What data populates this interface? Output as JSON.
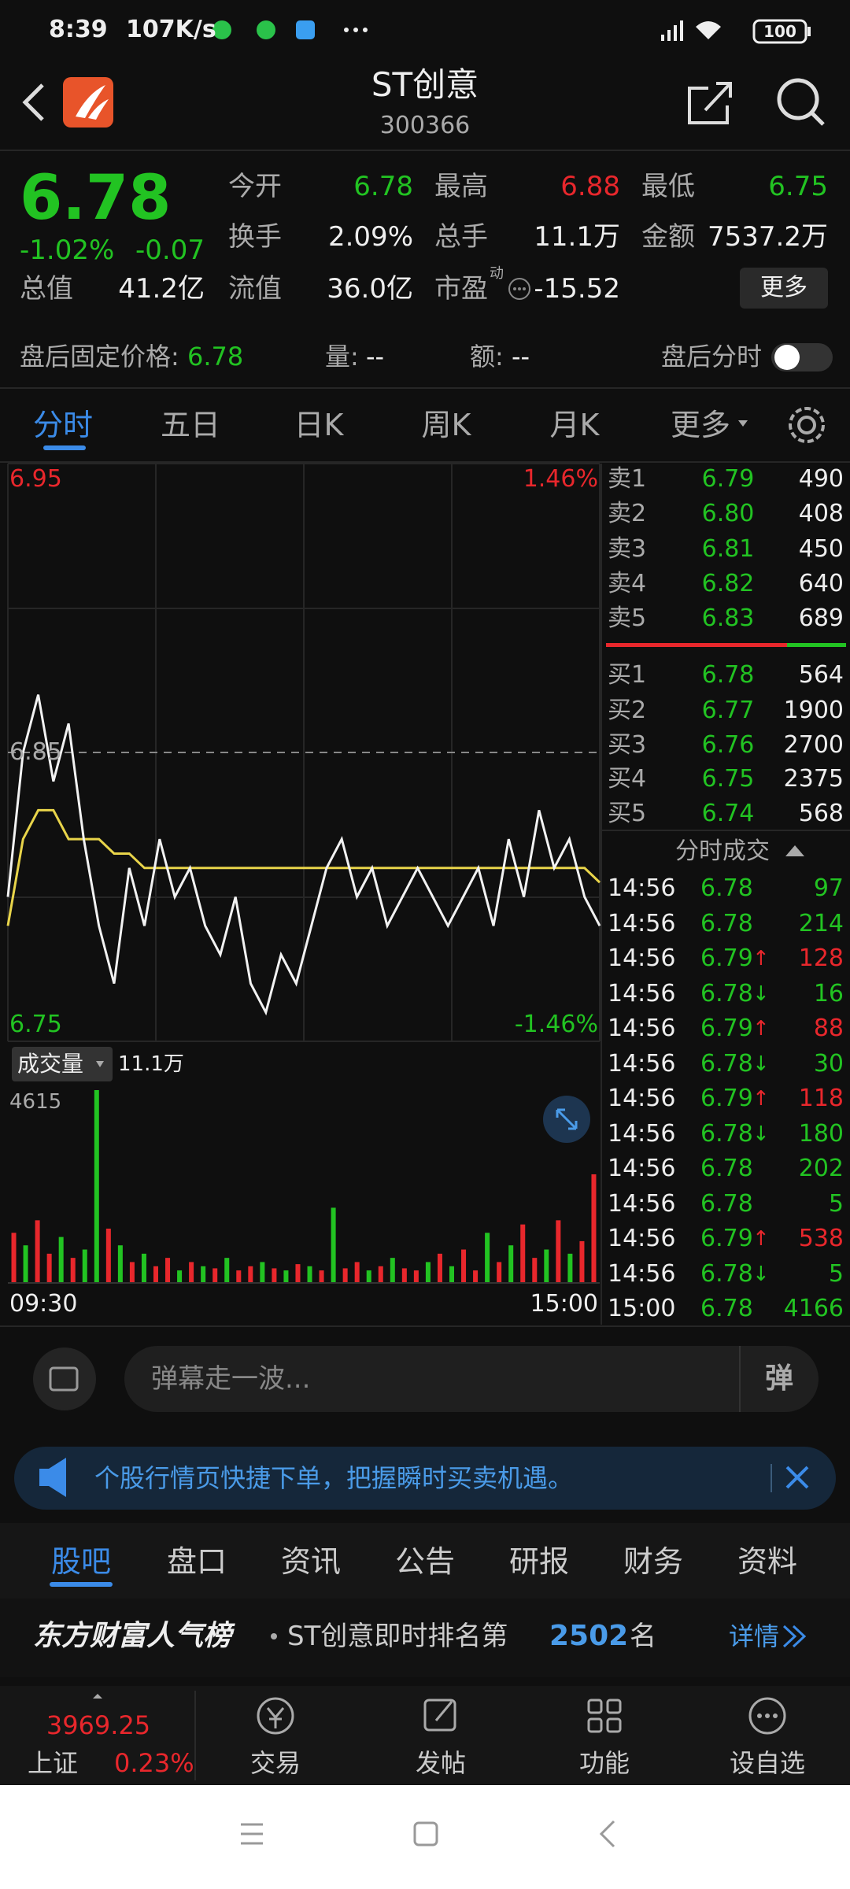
{
  "status": {
    "time": "8:39",
    "speed": "107K/s",
    "battery": "100"
  },
  "header": {
    "title": "ST创意",
    "code": "300366"
  },
  "quote": {
    "price": "6.78",
    "change_pct": "-1.02%",
    "change": "-0.07",
    "fields": [
      {
        "label": "今开",
        "value": "6.78"
      },
      {
        "label": "最高",
        "value": "6.88"
      },
      {
        "label": "最低",
        "value": "6.75"
      },
      {
        "label": "换手",
        "value": "2.09%"
      },
      {
        "label": "总手",
        "value": "11.1万"
      },
      {
        "label": "金额",
        "value": "7537.2万"
      },
      {
        "label": "总值",
        "value": "41.2亿"
      },
      {
        "label": "流值",
        "value": "36.0亿"
      },
      {
        "label": "市盈",
        "value": "-15.52"
      }
    ],
    "pe_superscript": "动",
    "more": "更多"
  },
  "after_hours": {
    "label": "盘后固定价格:",
    "value": "6.78",
    "vol_label": "量:",
    "vol": "--",
    "amt_label": "额:",
    "amt": "--",
    "toggle": "盘后分时"
  },
  "tabs": [
    "分时",
    "五日",
    "日K",
    "周K",
    "月K",
    "更多"
  ],
  "chart": {
    "price_high": "6.95",
    "pct_high": "1.46%",
    "price_mid": "6.85",
    "price_low": "6.75",
    "pct_low": "-1.46%",
    "volume_label": "成交量",
    "volume_total": "11.1万",
    "volume_max": "4615",
    "time_start": "09:30",
    "time_end": "15:00",
    "ylim": [
      6.75,
      6.95
    ],
    "price": [
      6.8,
      6.85,
      6.87,
      6.84,
      6.86,
      6.82,
      6.79,
      6.77,
      6.81,
      6.79,
      6.82,
      6.8,
      6.81,
      6.79,
      6.78,
      6.8,
      6.77,
      6.76,
      6.78,
      6.77,
      6.79,
      6.81,
      6.82,
      6.8,
      6.81,
      6.79,
      6.8,
      6.81,
      6.8,
      6.79,
      6.8,
      6.81,
      6.79,
      6.82,
      6.8,
      6.83,
      6.81,
      6.82,
      6.8,
      6.79
    ],
    "avg": [
      6.79,
      6.82,
      6.83,
      6.83,
      6.82,
      6.82,
      6.82,
      6.815,
      6.815,
      6.81,
      6.81,
      6.81,
      6.81,
      6.81,
      6.81,
      6.81,
      6.81,
      6.81,
      6.81,
      6.81,
      6.81,
      6.81,
      6.81,
      6.81,
      6.81,
      6.81,
      6.81,
      6.81,
      6.81,
      6.81,
      6.81,
      6.81,
      6.81,
      6.81,
      6.81,
      6.81,
      6.81,
      6.81,
      6.81,
      6.805
    ],
    "vlim": [
      0,
      4615
    ],
    "volume": [
      1200,
      900,
      1500,
      700,
      1100,
      600,
      800,
      4615,
      1300,
      900,
      500,
      700,
      400,
      600,
      300,
      500,
      400,
      350,
      600,
      300,
      400,
      500,
      350,
      300,
      450,
      400,
      300,
      1800,
      350,
      500,
      300,
      400,
      600,
      350,
      300,
      500,
      700,
      400,
      800,
      300,
      1200,
      500,
      900,
      1400,
      600,
      800,
      1500,
      700,
      1000,
      2600
    ],
    "volume_up": [
      true,
      false,
      true,
      true,
      false,
      true,
      false,
      false,
      true,
      false,
      true,
      false,
      true,
      true,
      false,
      true,
      false,
      true,
      false,
      true,
      true,
      false,
      true,
      false,
      true,
      false,
      true,
      false,
      true,
      true,
      false,
      true,
      false,
      true,
      true,
      false,
      true,
      false,
      true,
      true,
      false,
      true,
      false,
      true,
      true,
      false,
      true,
      false,
      true,
      true
    ]
  },
  "order_book": {
    "sells": [
      {
        "label": "卖5",
        "price": "6.83",
        "qty": "689"
      },
      {
        "label": "卖4",
        "price": "6.82",
        "qty": "640"
      },
      {
        "label": "卖3",
        "price": "6.81",
        "qty": "450"
      },
      {
        "label": "卖2",
        "price": "6.80",
        "qty": "408"
      },
      {
        "label": "卖1",
        "price": "6.79",
        "qty": "490"
      }
    ],
    "buys": [
      {
        "label": "买1",
        "price": "6.78",
        "qty": "564"
      },
      {
        "label": "买2",
        "price": "6.77",
        "qty": "1900"
      },
      {
        "label": "买3",
        "price": "6.76",
        "qty": "2700"
      },
      {
        "label": "买4",
        "price": "6.75",
        "qty": "2375"
      },
      {
        "label": "买5",
        "price": "6.74",
        "qty": "568"
      }
    ]
  },
  "trades": {
    "title": "分时成交",
    "rows": [
      {
        "time": "14:56",
        "price": "6.78",
        "vol": "97"
      },
      {
        "time": "14:56",
        "price": "6.78",
        "vol": "214"
      },
      {
        "time": "14:56",
        "price": "6.79",
        "arrow": "↑",
        "vol": "128"
      },
      {
        "time": "14:56",
        "price": "6.78",
        "arrow": "↓",
        "vol": "16"
      },
      {
        "time": "14:56",
        "price": "6.79",
        "arrow": "↑",
        "vol": "88"
      },
      {
        "time": "14:56",
        "price": "6.78",
        "arrow": "↓",
        "vol": "30"
      },
      {
        "time": "14:56",
        "price": "6.79",
        "arrow": "↑",
        "vol": "118"
      },
      {
        "time": "14:56",
        "price": "6.78",
        "arrow": "↓",
        "vol": "180"
      },
      {
        "time": "14:56",
        "price": "6.78",
        "vol": "202"
      },
      {
        "time": "14:56",
        "price": "6.78",
        "vol": "5"
      },
      {
        "time": "14:56",
        "price": "6.79",
        "arrow": "↑",
        "vol": "538"
      },
      {
        "time": "14:56",
        "price": "6.78",
        "arrow": "↓",
        "vol": "5"
      },
      {
        "time": "15:00",
        "price": "6.78",
        "vol": "4166"
      }
    ]
  },
  "danmu": {
    "placeholder": "弹幕走一波...",
    "button": "弹"
  },
  "banner": {
    "text": "个股行情页快捷下单，把握瞬时买卖机遇。"
  },
  "section_tabs": [
    "股吧",
    "盘口",
    "资讯",
    "公告",
    "研报",
    "财务",
    "资料"
  ],
  "rank": {
    "brand": "东方财富人气榜",
    "text": "ST创意即时排名第",
    "rank": "2502",
    "suffix": "名",
    "link": "详情"
  },
  "bottom": {
    "index_value": "3969.25",
    "index_name": "上证",
    "index_pct": "0.23%",
    "nav": [
      "交易",
      "发帖",
      "功能",
      "设自选"
    ]
  }
}
